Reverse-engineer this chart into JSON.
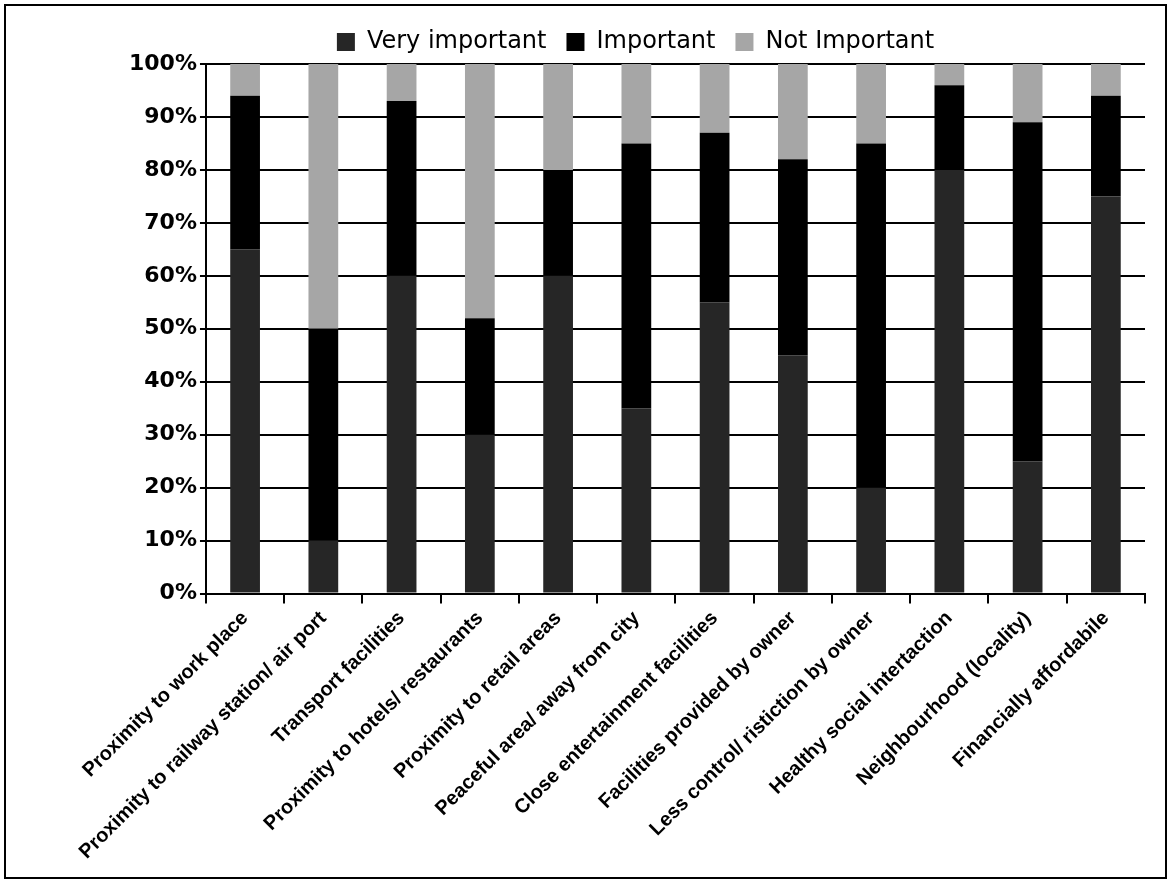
{
  "chart_data": {
    "type": "bar",
    "stacked": true,
    "categories": [
      "Proximity to work place",
      "Proximity to railway station/ air port",
      "Transport facilities",
      "Proximity to hotels/ restaurants",
      "Proximity to retail areas",
      "Peaceful area/ away from city",
      "Close entertainment facilities",
      "Facilities provided by owner",
      "Less control/ ristiction by owner",
      "Healthy social intertaction",
      "Neighbourhood (locality)",
      "Financially affordabile"
    ],
    "series": [
      {
        "name": "Very important",
        "color": "#262626",
        "values": [
          65,
          10,
          60,
          30,
          60,
          35,
          55,
          45,
          20,
          80,
          25,
          75
        ]
      },
      {
        "name": "Important",
        "color": "#000000",
        "values": [
          29,
          40,
          33,
          22,
          20,
          50,
          32,
          37,
          65,
          16,
          64,
          19
        ]
      },
      {
        "name": "Not Important",
        "color": "#a6a6a6",
        "values": [
          6,
          50,
          7,
          48,
          20,
          15,
          13,
          18,
          15,
          4,
          11,
          6
        ]
      }
    ],
    "ylim": [
      0,
      100
    ],
    "yticks": [
      {
        "value": 0,
        "label": "0%"
      },
      {
        "value": 10,
        "label": "10%"
      },
      {
        "value": 20,
        "label": "20%"
      },
      {
        "value": 30,
        "label": "30%"
      },
      {
        "value": 40,
        "label": "40%"
      },
      {
        "value": 50,
        "label": "50%"
      },
      {
        "value": 60,
        "label": "60%"
      },
      {
        "value": 70,
        "label": "70%"
      },
      {
        "value": 80,
        "label": "80%"
      },
      {
        "value": 90,
        "label": "90%"
      },
      {
        "value": 100,
        "label": "100%"
      }
    ],
    "grid": "y",
    "legend": "top"
  }
}
